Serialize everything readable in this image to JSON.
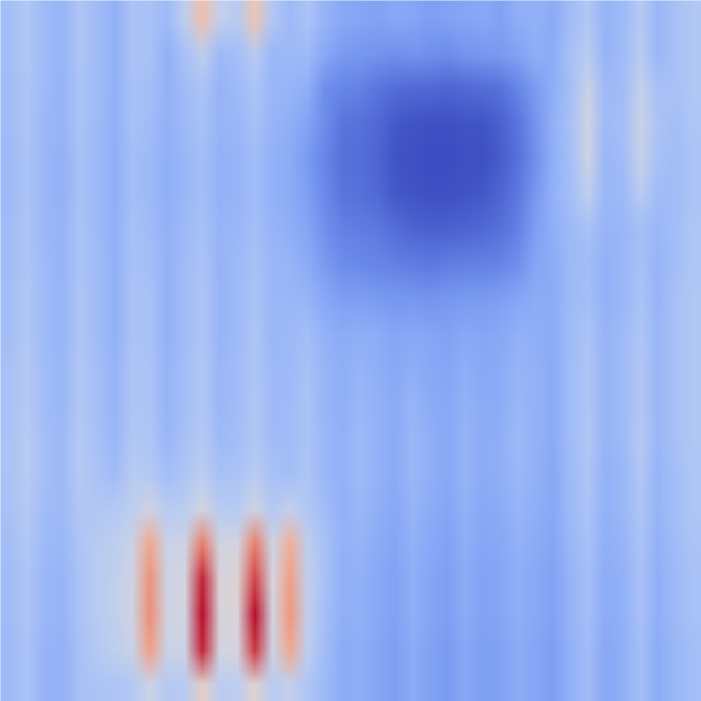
{
  "chart_data": {
    "type": "heatmap",
    "color": "coolwarm",
    "tick_labels": false,
    "grid": false,
    "color_range": [
      0,
      100
    ],
    "cells": [
      [
        32,
        36,
        30,
        28,
        35,
        31,
        27,
        34,
        33,
        30,
        40,
        62,
        42,
        38,
        60,
        36,
        30,
        34,
        28,
        24,
        23,
        22,
        24,
        23,
        21,
        22,
        23,
        24,
        22,
        26,
        27,
        25,
        31,
        36,
        28,
        30,
        37,
        29,
        33,
        36
      ],
      [
        32,
        36,
        30,
        28,
        35,
        31,
        27,
        34,
        33,
        27,
        33,
        40,
        30,
        32,
        38,
        29,
        30,
        30,
        24,
        20,
        19,
        18,
        17,
        18,
        17,
        16,
        18,
        19,
        20,
        22,
        26,
        25,
        33,
        38,
        28,
        31,
        38,
        29,
        33,
        36
      ],
      [
        31,
        35,
        30,
        28,
        34,
        31,
        27,
        33,
        32,
        27,
        31,
        34,
        28,
        30,
        34,
        29,
        28,
        26,
        16,
        14,
        13,
        10,
        8,
        7,
        7,
        6,
        7,
        8,
        9,
        14,
        20,
        26,
        32,
        44,
        30,
        31,
        42,
        33,
        33,
        36
      ],
      [
        31,
        35,
        29,
        28,
        34,
        30,
        27,
        33,
        31,
        27,
        30,
        33,
        28,
        29,
        33,
        28,
        26,
        22,
        16,
        10,
        9,
        7,
        3,
        2,
        1,
        1,
        2,
        2,
        5,
        10,
        18,
        27,
        33,
        46,
        30,
        32,
        44,
        34,
        32,
        35
      ],
      [
        30,
        34,
        29,
        27,
        33,
        30,
        26,
        32,
        30,
        26,
        29,
        32,
        27,
        28,
        31,
        27,
        25,
        20,
        14,
        9,
        8,
        6,
        2,
        1,
        0,
        0,
        1,
        1,
        4,
        9,
        17,
        26,
        32,
        45,
        29,
        31,
        43,
        33,
        31,
        34
      ],
      [
        30,
        34,
        29,
        27,
        33,
        30,
        26,
        32,
        30,
        26,
        29,
        32,
        27,
        28,
        31,
        27,
        25,
        21,
        15,
        10,
        9,
        7,
        3,
        2,
        1,
        1,
        2,
        3,
        6,
        11,
        19,
        27,
        32,
        40,
        29,
        30,
        38,
        31,
        31,
        34
      ],
      [
        31,
        35,
        29,
        28,
        34,
        30,
        27,
        33,
        31,
        27,
        30,
        33,
        28,
        29,
        32,
        28,
        26,
        23,
        17,
        13,
        12,
        11,
        8,
        6,
        5,
        5,
        6,
        7,
        9,
        13,
        21,
        26,
        30,
        33,
        28,
        29,
        32,
        29,
        32,
        35
      ],
      [
        31,
        35,
        30,
        28,
        34,
        31,
        27,
        33,
        32,
        27,
        31,
        34,
        28,
        30,
        33,
        29,
        28,
        25,
        20,
        16,
        15,
        14,
        13,
        12,
        11,
        12,
        13,
        13,
        14,
        17,
        23,
        25,
        30,
        31,
        27,
        29,
        33,
        28,
        32,
        35
      ],
      [
        32,
        36,
        30,
        28,
        35,
        31,
        27,
        34,
        33,
        27,
        31,
        35,
        28,
        30,
        34,
        29,
        29,
        28,
        24,
        21,
        21,
        20,
        19,
        19,
        18,
        19,
        20,
        20,
        21,
        23,
        25,
        25,
        30,
        32,
        27,
        29,
        34,
        28,
        33,
        36
      ],
      [
        32,
        36,
        30,
        28,
        35,
        31,
        27,
        34,
        33,
        27,
        31,
        35,
        28,
        30,
        35,
        29,
        30,
        32,
        27,
        25,
        26,
        25,
        23,
        24,
        23,
        22,
        24,
        23,
        24,
        27,
        26,
        25,
        31,
        34,
        28,
        30,
        35,
        29,
        33,
        36
      ],
      [
        33,
        37,
        31,
        29,
        36,
        32,
        28,
        35,
        34,
        28,
        32,
        36,
        29,
        31,
        35,
        30,
        30,
        33,
        28,
        26,
        28,
        26,
        24,
        26,
        24,
        23,
        26,
        24,
        25,
        28,
        27,
        25,
        31,
        35,
        28,
        30,
        36,
        29,
        33,
        36
      ],
      [
        33,
        37,
        31,
        29,
        36,
        32,
        28,
        35,
        34,
        28,
        32,
        36,
        29,
        31,
        36,
        30,
        31,
        34,
        28,
        26,
        29,
        27,
        25,
        28,
        25,
        24,
        27,
        25,
        25,
        29,
        27,
        25,
        31,
        35,
        28,
        30,
        36,
        29,
        33,
        36
      ],
      [
        34,
        38,
        32,
        30,
        37,
        33,
        29,
        36,
        35,
        29,
        33,
        37,
        30,
        32,
        36,
        31,
        31,
        34,
        29,
        27,
        30,
        27,
        25,
        29,
        26,
        24,
        28,
        25,
        26,
        30,
        27,
        25,
        31,
        36,
        28,
        30,
        37,
        29,
        33,
        36
      ],
      [
        34,
        38,
        32,
        30,
        37,
        34,
        31,
        38,
        37,
        32,
        35,
        39,
        33,
        34,
        38,
        33,
        32,
        35,
        29,
        27,
        30,
        27,
        25,
        29,
        26,
        24,
        28,
        25,
        26,
        29,
        27,
        24,
        30,
        35,
        27,
        29,
        36,
        28,
        32,
        35
      ],
      [
        33,
        37,
        31,
        30,
        36,
        36,
        37,
        40,
        46,
        38,
        39,
        47,
        38,
        38,
        46,
        37,
        42,
        36,
        31,
        27,
        29,
        26,
        24,
        28,
        25,
        23,
        27,
        24,
        25,
        28,
        26,
        24,
        30,
        34,
        27,
        29,
        35,
        28,
        32,
        35
      ],
      [
        32,
        36,
        30,
        29,
        35,
        38,
        40,
        44,
        70,
        44,
        45,
        80,
        46,
        47,
        80,
        45,
        68,
        40,
        33,
        27,
        28,
        25,
        23,
        27,
        24,
        22,
        26,
        23,
        24,
        27,
        25,
        23,
        29,
        33,
        26,
        28,
        34,
        27,
        31,
        34
      ],
      [
        31,
        35,
        29,
        28,
        34,
        38,
        41,
        46,
        75,
        45,
        48,
        95,
        50,
        52,
        90,
        48,
        72,
        41,
        33,
        26,
        27,
        24,
        22,
        26,
        23,
        21,
        25,
        22,
        23,
        26,
        24,
        22,
        28,
        32,
        25,
        27,
        33,
        26,
        30,
        33
      ],
      [
        31,
        35,
        29,
        28,
        34,
        38,
        41,
        46,
        76,
        46,
        47,
        98,
        49,
        50,
        98,
        47,
        74,
        41,
        32,
        26,
        27,
        24,
        22,
        26,
        23,
        21,
        25,
        22,
        23,
        26,
        24,
        22,
        28,
        32,
        25,
        27,
        33,
        26,
        30,
        33
      ],
      [
        30,
        34,
        28,
        27,
        33,
        37,
        40,
        44,
        72,
        44,
        45,
        95,
        47,
        48,
        92,
        45,
        70,
        40,
        31,
        25,
        26,
        23,
        21,
        25,
        22,
        20,
        24,
        21,
        22,
        25,
        23,
        21,
        27,
        31,
        24,
        26,
        32,
        25,
        29,
        32
      ],
      [
        30,
        34,
        28,
        27,
        33,
        34,
        35,
        37,
        45,
        37,
        38,
        55,
        39,
        40,
        52,
        38,
        42,
        35,
        30,
        25,
        26,
        23,
        21,
        25,
        22,
        20,
        24,
        21,
        22,
        25,
        23,
        21,
        27,
        31,
        24,
        26,
        32,
        25,
        29,
        32
      ]
    ]
  }
}
